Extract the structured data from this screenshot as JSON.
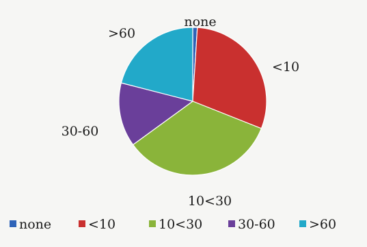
{
  "chart_data": {
    "type": "pie",
    "title": "",
    "categories": [
      "none",
      "<10",
      "10<30",
      "30-60",
      ">60"
    ],
    "values": [
      1,
      30,
      34,
      14,
      21
    ],
    "colors": [
      "#2e63b8",
      "#c9302f",
      "#8ab43a",
      "#6a3f9a",
      "#22a9c9"
    ],
    "start_angle_deg": 0,
    "legend": {
      "position": "bottom",
      "labels": [
        "none",
        "<10",
        "10<30",
        "30-60",
        ">60"
      ]
    }
  }
}
